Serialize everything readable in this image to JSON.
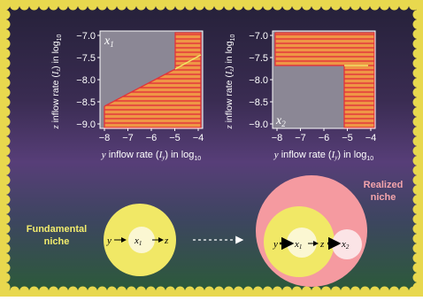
{
  "plots": [
    {
      "id": "x1",
      "var_label": "x",
      "var_sub": "1",
      "xaxis": {
        "prefix": "y",
        "text": " inflow rate (",
        "sym": "I",
        "sub": "y",
        "suffix": ") in log",
        "base": "10"
      },
      "yaxis": {
        "prefix": "z",
        "text": " inflow rate (",
        "sym": "I",
        "sub": "z",
        "suffix": ") in log",
        "base": "10"
      },
      "xticks": [
        "−8",
        "−7",
        "−6",
        "−5",
        "−4"
      ],
      "yticks": [
        "−7.0",
        "−7.5",
        "−8.0",
        "−8.5",
        "−9.0"
      ]
    },
    {
      "id": "x2",
      "var_label": "x",
      "var_sub": "2",
      "xaxis": {
        "prefix": "y",
        "text": " inflow rate (",
        "sym": "I",
        "sub": "y",
        "suffix": ") in log",
        "base": "10"
      },
      "yaxis": {
        "prefix": "z",
        "text": " inflow rate (",
        "sym": "I",
        "sub": "z",
        "suffix": ") in log",
        "base": "10"
      },
      "xticks": [
        "−8",
        "−7",
        "−6",
        "−5",
        "−4"
      ],
      "yticks": [
        "−7.0",
        "−7.5",
        "−8.0",
        "−8.5",
        "−9.0"
      ]
    }
  ],
  "niche": {
    "fundamental_line1": "Fundamental",
    "fundamental_line2": "niche",
    "realized_line1": "Realized",
    "realized_line2": "niche",
    "y": "y",
    "z": "z",
    "x": "x",
    "x1_sub": "1",
    "x2_sub": "2"
  },
  "colors": {
    "yellow": "#f1e866",
    "pink": "#f59aa0",
    "plot_bg": "#8b8795",
    "hatch_orange": "#ec8f3a",
    "hatch_red": "#e2333a",
    "realized_text": "#f3a4ab",
    "fundamental_text": "#f2ec6d"
  }
}
